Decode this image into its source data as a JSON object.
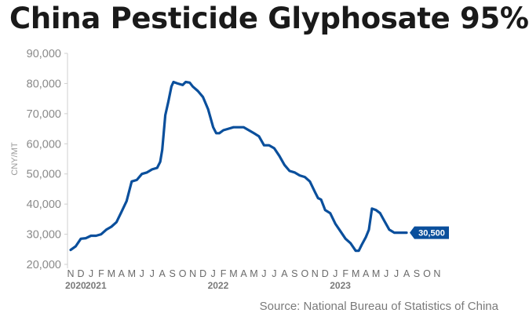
{
  "chart_data": {
    "type": "line",
    "title": "China Pesticide Glyphosate 95%",
    "ylabel": "CNY/MT",
    "xlabel": "",
    "source": "Source: National Bureau of Statistics of China",
    "ylim": [
      20000,
      90000
    ],
    "yticks": [
      20000,
      30000,
      40000,
      50000,
      60000,
      70000,
      80000,
      90000
    ],
    "ytick_labels": [
      "20,000",
      "30,000",
      "40,000",
      "50,000",
      "60,000",
      "70,000",
      "80,000",
      "90,000"
    ],
    "month_labels": [
      "N",
      "D",
      "J",
      "F",
      "M",
      "A",
      "M",
      "J",
      "J",
      "A",
      "S",
      "O",
      "N",
      "D",
      "J",
      "F",
      "M",
      "A",
      "M",
      "J",
      "J",
      "A",
      "S",
      "O",
      "N",
      "D",
      "J",
      "F",
      "M",
      "A",
      "M",
      "J",
      "J",
      "A",
      "S",
      "O",
      "N"
    ],
    "year_labels": [
      {
        "label": "2020",
        "month_index": 0
      },
      {
        "label": "2021",
        "month_index": 2
      },
      {
        "label": "2022",
        "month_index": 14
      },
      {
        "label": "2023",
        "month_index": 26
      }
    ],
    "grid": false,
    "last_value_label": "30,500",
    "series": [
      {
        "color": "#0a4f9c",
        "points": [
          [
            0,
            24800
          ],
          [
            0.5,
            26000
          ],
          [
            1,
            28500
          ],
          [
            1.5,
            28700
          ],
          [
            2,
            29500
          ],
          [
            2.5,
            29500
          ],
          [
            3,
            30000
          ],
          [
            3.5,
            31500
          ],
          [
            4,
            32500
          ],
          [
            4.5,
            34000
          ],
          [
            5,
            37500
          ],
          [
            5.5,
            41000
          ],
          [
            6,
            47500
          ],
          [
            6.5,
            48000
          ],
          [
            7,
            50000
          ],
          [
            7.5,
            50500
          ],
          [
            8,
            51500
          ],
          [
            8.5,
            52000
          ],
          [
            8.8,
            54000
          ],
          [
            9,
            58000
          ],
          [
            9.3,
            69500
          ],
          [
            9.6,
            74000
          ],
          [
            9.9,
            79000
          ],
          [
            10.1,
            80500
          ],
          [
            10.5,
            80000
          ],
          [
            11,
            79500
          ],
          [
            11.3,
            80500
          ],
          [
            11.7,
            80300
          ],
          [
            12,
            79000
          ],
          [
            12.5,
            77500
          ],
          [
            13,
            75500
          ],
          [
            13.5,
            71500
          ],
          [
            14,
            65500
          ],
          [
            14.3,
            63500
          ],
          [
            14.6,
            63500
          ],
          [
            15,
            64500
          ],
          [
            15.5,
            65000
          ],
          [
            16,
            65500
          ],
          [
            16.5,
            65500
          ],
          [
            17,
            65500
          ],
          [
            17.5,
            64500
          ],
          [
            18,
            63500
          ],
          [
            18.5,
            62500
          ],
          [
            19,
            59500
          ],
          [
            19.5,
            59500
          ],
          [
            20,
            58500
          ],
          [
            20.5,
            56000
          ],
          [
            21,
            53000
          ],
          [
            21.5,
            51000
          ],
          [
            22,
            50500
          ],
          [
            22.5,
            49500
          ],
          [
            23,
            49000
          ],
          [
            23.5,
            47500
          ],
          [
            24,
            44000
          ],
          [
            24.3,
            42000
          ],
          [
            24.6,
            41500
          ],
          [
            25,
            38000
          ],
          [
            25.5,
            37000
          ],
          [
            26,
            33500
          ],
          [
            26.5,
            31000
          ],
          [
            27,
            28500
          ],
          [
            27.5,
            27000
          ],
          [
            28,
            24500
          ],
          [
            28.3,
            24500
          ],
          [
            28.6,
            26500
          ],
          [
            29,
            29000
          ],
          [
            29.3,
            31500
          ],
          [
            29.6,
            38500
          ],
          [
            30,
            38000
          ],
          [
            30.4,
            37000
          ],
          [
            30.8,
            34500
          ],
          [
            31.3,
            31500
          ],
          [
            31.8,
            30500
          ],
          [
            32.5,
            30500
          ],
          [
            33,
            30500
          ]
        ]
      }
    ]
  }
}
